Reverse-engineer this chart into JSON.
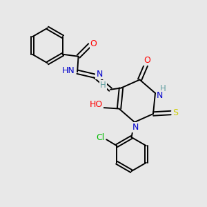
{
  "bg_color": "#e8e8e8",
  "bond_color": "#000000",
  "atom_colors": {
    "N": "#0000cc",
    "O": "#ff0000",
    "S": "#cccc00",
    "Cl": "#00bb00",
    "C": "#000000",
    "H": "#5f9ea0"
  },
  "figsize": [
    3.0,
    3.0
  ],
  "dpi": 100
}
